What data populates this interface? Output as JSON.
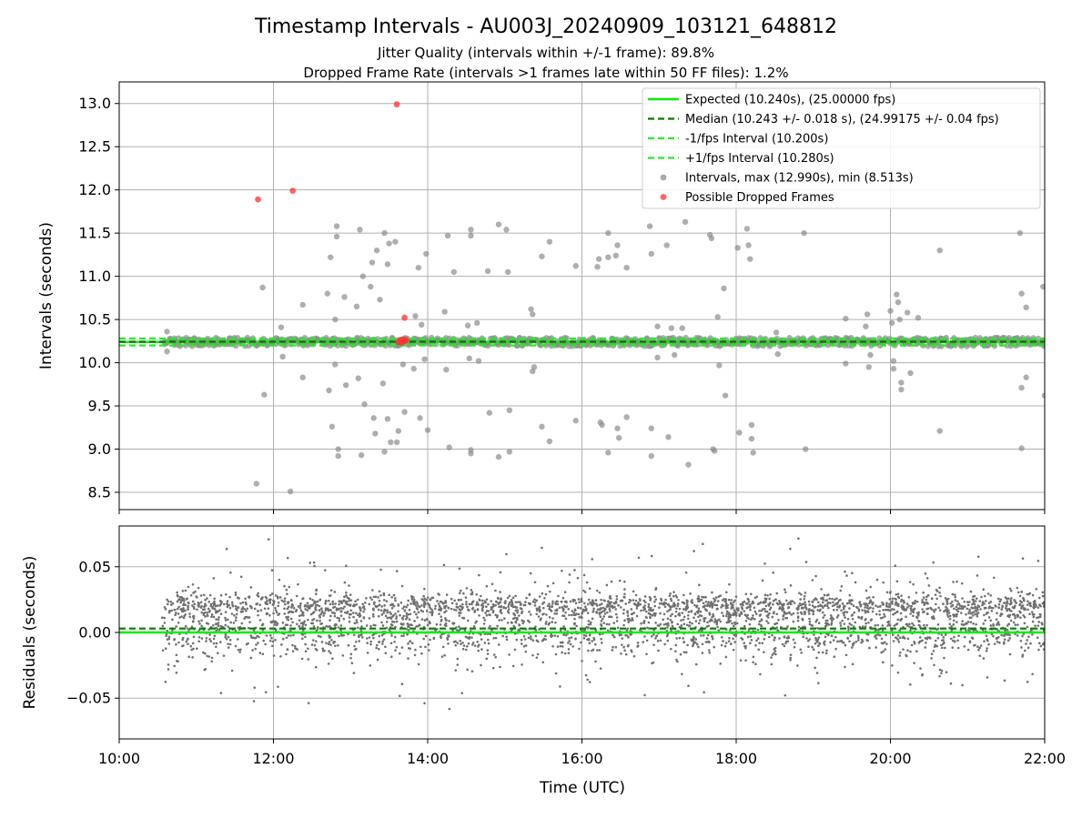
{
  "chart_data": {
    "type": "scatter",
    "title": "Timestamp Intervals - AU003J_20240909_103121_648812",
    "subtitle_lines": [
      "Jitter Quality (intervals within +/-1 frame): 89.8%",
      "Dropped Frame Rate (intervals >1 frames late within 50 FF files): 1.2%"
    ],
    "colors": {
      "expected": "#00ee00",
      "median": "#007a00",
      "interval_bounds": "#22ee22",
      "intervals": "#8c8c8c",
      "dropped": "#ff3030",
      "residual_points": "#707070",
      "grid": "#b0b0b0"
    },
    "shared_x": {
      "label": "Time (UTC)",
      "unit": "hour",
      "lim": [
        10.0,
        22.0
      ],
      "ticks": [
        10,
        12,
        14,
        16,
        18,
        20,
        22
      ],
      "tick_labels": [
        "10:00",
        "12:00",
        "14:00",
        "16:00",
        "18:00",
        "20:00",
        "22:00"
      ]
    },
    "panels": [
      {
        "id": "intervals",
        "ylabel": "Intervals (seconds)",
        "ylim": [
          8.3,
          13.25
        ],
        "yticks": [
          8.5,
          9.0,
          9.5,
          10.0,
          10.5,
          11.0,
          11.5,
          12.0,
          12.5,
          13.0
        ],
        "ytick_labels": [
          "8.5",
          "9.0",
          "9.5",
          "10.0",
          "10.5",
          "11.0",
          "11.5",
          "12.0",
          "12.5",
          "13.0"
        ],
        "grid": true,
        "legend_position": "top-right",
        "lines": [
          {
            "key": "expected",
            "name": "Expected (10.240s), (25.00000 fps)",
            "y": 10.24,
            "style": "solid"
          },
          {
            "key": "median",
            "name": "Median (10.243 +/- 0.018 s), (24.99175 +/- 0.04 fps)",
            "y": 10.243,
            "style": "dashed"
          },
          {
            "key": "minus",
            "name": "-1/fps Interval (10.200s)",
            "y": 10.2,
            "style": "dashed"
          },
          {
            "key": "plus",
            "name": "+1/fps Interval (10.280s)",
            "y": 10.28,
            "style": "dashed"
          }
        ],
        "scatter_series": [
          {
            "key": "intervals",
            "name": "Intervals, max (12.990s), min (8.513s)"
          },
          {
            "key": "dropped",
            "name": "Possible Dropped Frames"
          }
        ],
        "band": {
          "x_range": [
            10.6,
            22.0
          ],
          "y_center": 10.24,
          "jitter": 0.05
        },
        "outliers": [
          [
            10.62,
            10.36
          ],
          [
            10.62,
            10.13
          ],
          [
            11.78,
            8.6
          ],
          [
            11.86,
            10.87
          ],
          [
            11.88,
            9.63
          ],
          [
            12.1,
            10.41
          ],
          [
            12.12,
            10.07
          ],
          [
            12.22,
            8.51
          ],
          [
            12.38,
            10.67
          ],
          [
            12.38,
            9.83
          ],
          [
            12.7,
            10.8
          ],
          [
            12.72,
            9.68
          ],
          [
            12.74,
            11.22
          ],
          [
            12.76,
            9.26
          ],
          [
            12.8,
            10.5
          ],
          [
            12.8,
            9.98
          ],
          [
            12.82,
            11.58
          ],
          [
            12.82,
            11.46
          ],
          [
            12.84,
            9.0
          ],
          [
            12.84,
            8.92
          ],
          [
            12.92,
            10.76
          ],
          [
            12.94,
            9.74
          ],
          [
            13.08,
            10.65
          ],
          [
            13.1,
            9.82
          ],
          [
            13.12,
            11.54
          ],
          [
            13.14,
            8.93
          ],
          [
            13.16,
            11.0
          ],
          [
            13.18,
            9.52
          ],
          [
            13.26,
            10.88
          ],
          [
            13.28,
            11.16
          ],
          [
            13.3,
            9.36
          ],
          [
            13.32,
            9.18
          ],
          [
            13.34,
            11.3
          ],
          [
            13.38,
            10.73
          ],
          [
            13.42,
            9.76
          ],
          [
            13.44,
            11.5
          ],
          [
            13.44,
            8.97
          ],
          [
            13.48,
            11.14
          ],
          [
            13.48,
            9.35
          ],
          [
            13.5,
            11.38
          ],
          [
            13.52,
            9.08
          ],
          [
            13.58,
            11.4
          ],
          [
            13.6,
            9.08
          ],
          [
            13.62,
            9.21
          ],
          [
            13.68,
            9.98
          ],
          [
            13.7,
            9.43
          ],
          [
            13.82,
            9.93
          ],
          [
            13.84,
            10.54
          ],
          [
            13.88,
            11.1
          ],
          [
            13.9,
            9.36
          ],
          [
            13.92,
            10.44
          ],
          [
            13.96,
            10.04
          ],
          [
            13.98,
            11.26
          ],
          [
            14.0,
            9.22
          ],
          [
            14.22,
            10.59
          ],
          [
            14.24,
            9.92
          ],
          [
            14.26,
            11.47
          ],
          [
            14.28,
            9.02
          ],
          [
            14.34,
            11.05
          ],
          [
            14.52,
            10.43
          ],
          [
            14.54,
            10.05
          ],
          [
            14.56,
            11.54
          ],
          [
            14.56,
            11.47
          ],
          [
            14.56,
            8.99
          ],
          [
            14.56,
            8.95
          ],
          [
            14.64,
            10.46
          ],
          [
            14.66,
            10.02
          ],
          [
            14.78,
            11.06
          ],
          [
            14.8,
            9.42
          ],
          [
            14.92,
            11.6
          ],
          [
            14.92,
            8.91
          ],
          [
            15.02,
            11.54
          ],
          [
            15.04,
            11.05
          ],
          [
            15.06,
            9.45
          ],
          [
            15.06,
            8.97
          ],
          [
            15.34,
            10.62
          ],
          [
            15.36,
            10.56
          ],
          [
            15.36,
            9.9
          ],
          [
            15.38,
            9.95
          ],
          [
            15.48,
            11.23
          ],
          [
            15.48,
            9.26
          ],
          [
            15.58,
            11.4
          ],
          [
            15.58,
            9.09
          ],
          [
            15.92,
            11.12
          ],
          [
            15.92,
            9.33
          ],
          [
            16.2,
            11.11
          ],
          [
            16.22,
            11.2
          ],
          [
            16.24,
            9.31
          ],
          [
            16.26,
            9.28
          ],
          [
            16.34,
            11.22
          ],
          [
            16.34,
            11.5
          ],
          [
            16.34,
            8.96
          ],
          [
            16.44,
            11.24
          ],
          [
            16.46,
            11.36
          ],
          [
            16.46,
            9.24
          ],
          [
            16.48,
            9.13
          ],
          [
            16.58,
            11.1
          ],
          [
            16.58,
            9.37
          ],
          [
            16.88,
            11.58
          ],
          [
            16.9,
            11.26
          ],
          [
            16.9,
            9.24
          ],
          [
            16.9,
            8.92
          ],
          [
            16.98,
            10.42
          ],
          [
            16.98,
            10.06
          ],
          [
            17.1,
            11.36
          ],
          [
            17.12,
            9.14
          ],
          [
            17.16,
            10.4
          ],
          [
            17.2,
            10.09
          ],
          [
            17.3,
            10.4
          ],
          [
            17.34,
            11.63
          ],
          [
            17.38,
            8.82
          ],
          [
            17.66,
            11.48
          ],
          [
            17.68,
            11.44
          ],
          [
            17.7,
            9.0
          ],
          [
            17.72,
            8.98
          ],
          [
            17.76,
            10.53
          ],
          [
            17.78,
            9.97
          ],
          [
            17.84,
            10.86
          ],
          [
            17.86,
            9.62
          ],
          [
            18.02,
            11.33
          ],
          [
            18.04,
            9.19
          ],
          [
            18.14,
            11.55
          ],
          [
            18.16,
            11.36
          ],
          [
            18.18,
            11.2
          ],
          [
            18.2,
            9.28
          ],
          [
            18.2,
            9.12
          ],
          [
            18.22,
            8.96
          ],
          [
            18.52,
            10.35
          ],
          [
            18.54,
            10.1
          ],
          [
            18.88,
            11.5
          ],
          [
            18.9,
            9.0
          ],
          [
            19.42,
            10.51
          ],
          [
            19.42,
            9.99
          ],
          [
            19.68,
            10.42
          ],
          [
            19.7,
            10.56
          ],
          [
            19.72,
            9.95
          ],
          [
            19.74,
            10.09
          ],
          [
            20.0,
            10.6
          ],
          [
            20.02,
            10.46
          ],
          [
            20.04,
            9.93
          ],
          [
            20.04,
            10.02
          ],
          [
            20.08,
            10.79
          ],
          [
            20.1,
            10.7
          ],
          [
            20.12,
            10.5
          ],
          [
            20.14,
            9.77
          ],
          [
            20.14,
            9.69
          ],
          [
            20.22,
            10.58
          ],
          [
            20.26,
            9.88
          ],
          [
            20.36,
            10.52
          ],
          [
            20.64,
            11.3
          ],
          [
            20.64,
            9.21
          ],
          [
            21.68,
            11.5
          ],
          [
            21.7,
            10.8
          ],
          [
            21.7,
            9.71
          ],
          [
            21.7,
            9.01
          ],
          [
            21.76,
            10.64
          ],
          [
            21.76,
            9.83
          ],
          [
            21.98,
            10.88
          ],
          [
            22.0,
            9.62
          ]
        ],
        "dropped_points": [
          [
            11.8,
            11.89
          ],
          [
            12.25,
            11.99
          ],
          [
            13.6,
            12.99
          ],
          [
            13.7,
            10.52
          ],
          [
            13.62,
            10.24
          ],
          [
            13.64,
            10.26
          ],
          [
            13.66,
            10.23
          ],
          [
            13.68,
            10.27
          ],
          [
            13.7,
            10.25
          ],
          [
            13.72,
            10.26
          ]
        ]
      },
      {
        "id": "residuals",
        "ylabel": "Residuals (seconds)",
        "ylim": [
          -0.081,
          0.081
        ],
        "yticks": [
          -0.05,
          0.0,
          0.05
        ],
        "ytick_labels": [
          "−0.05",
          "0.00",
          "0.05"
        ],
        "grid": true,
        "lines": [
          {
            "key": "expected",
            "y": 0.0,
            "style": "solid"
          },
          {
            "key": "median",
            "y": 0.003,
            "style": "dashed"
          }
        ],
        "x_range": [
          10.55,
          22.0
        ],
        "point_count": 3600,
        "distribution": "mixture centered at 0.000 and 0.020 s with tails to about +/-0.07 s"
      }
    ]
  }
}
